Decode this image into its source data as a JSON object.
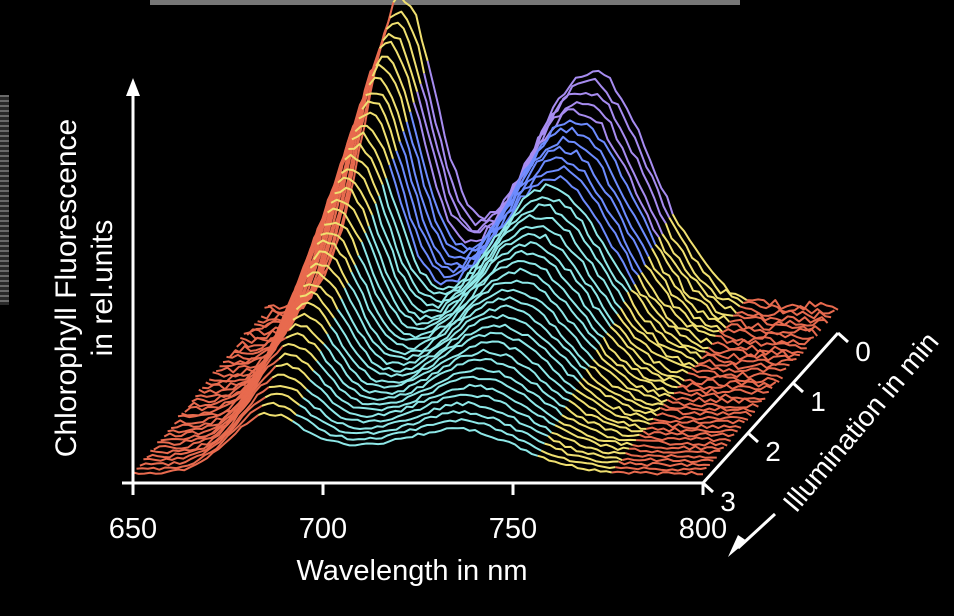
{
  "chart_data": {
    "type": "area",
    "xlabel": "Wavelength in nm",
    "ylabel_line1": "Chlorophyll Fluorescence",
    "ylabel_line2": "in rel.units",
    "zlabel": "Illumination in min",
    "x_ticks": [
      "650",
      "700",
      "750",
      "800"
    ],
    "z_ticks": [
      "0",
      "1",
      "2",
      "3"
    ],
    "xlim": [
      650,
      800
    ],
    "zlim": [
      0,
      3
    ],
    "peak_wavelengths_nm": [
      685,
      735
    ],
    "series_count": 40,
    "colors": {
      "background": "#000000",
      "axes": "#ffffff",
      "band_red": "#e86a4e",
      "band_yellow": "#f0e070",
      "band_cyan": "#8ee8e8",
      "band_blue": "#6d8cff",
      "band_violet": "#a78cf0"
    }
  }
}
